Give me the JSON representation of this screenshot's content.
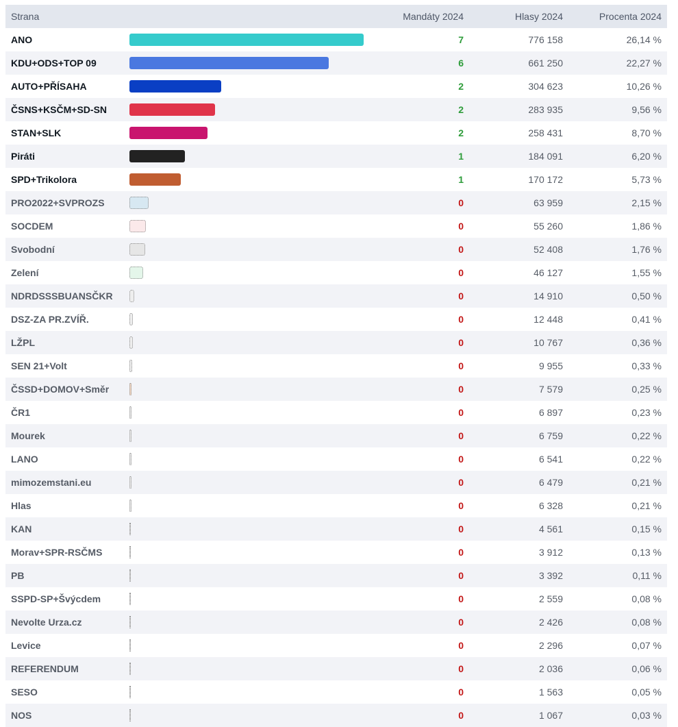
{
  "headers": {
    "party": "Strana",
    "seats": "Mandáty 2024",
    "votes": "Hlasy 2024",
    "percent": "Procenta 2024"
  },
  "chart_data": {
    "type": "bar",
    "series": [
      {
        "name": "Procenta 2024",
        "values_field": "pct"
      }
    ],
    "rows": [
      {
        "party": "ANO",
        "seats": "7",
        "votes": "776 158",
        "percent": "26,14 %",
        "pct": 26.14,
        "color": "#35cbcc",
        "elected": true
      },
      {
        "party": "KDU+ODS+TOP 09",
        "seats": "6",
        "votes": "661 250",
        "percent": "22,27 %",
        "pct": 22.27,
        "color": "#4a78e0",
        "elected": true
      },
      {
        "party": "AUTO+PŘÍSAHA",
        "seats": "2",
        "votes": "304 623",
        "percent": "10,26 %",
        "pct": 10.26,
        "color": "#0a3fc4",
        "elected": true
      },
      {
        "party": "ČSNS+KSČM+SD-SN",
        "seats": "2",
        "votes": "283 935",
        "percent": "9,56 %",
        "pct": 9.56,
        "color": "#e0344a",
        "elected": true
      },
      {
        "party": "STAN+SLK",
        "seats": "2",
        "votes": "258 431",
        "percent": "8,70 %",
        "pct": 8.7,
        "color": "#c9146e",
        "elected": true
      },
      {
        "party": "Piráti",
        "seats": "1",
        "votes": "184 091",
        "percent": "6,20 %",
        "pct": 6.2,
        "color": "#222222",
        "elected": true
      },
      {
        "party": "SPD+Trikolora",
        "seats": "1",
        "votes": "170 172",
        "percent": "5,73 %",
        "pct": 5.73,
        "color": "#c05d31",
        "elected": true
      },
      {
        "party": "PRO2022+SVPROZS",
        "seats": "0",
        "votes": "63 959",
        "percent": "2,15 %",
        "pct": 2.15,
        "color": "#d7e8f2",
        "elected": false
      },
      {
        "party": "SOCDEM",
        "seats": "0",
        "votes": "55 260",
        "percent": "1,86 %",
        "pct": 1.86,
        "color": "#fbe9ea",
        "elected": false
      },
      {
        "party": "Svobodní",
        "seats": "0",
        "votes": "52 408",
        "percent": "1,76 %",
        "pct": 1.76,
        "color": "#e6e6e6",
        "elected": false
      },
      {
        "party": "Zelení",
        "seats": "0",
        "votes": "46 127",
        "percent": "1,55 %",
        "pct": 1.55,
        "color": "#e4f6ea",
        "elected": false
      },
      {
        "party": "NDRDSSSBUANSČKR",
        "seats": "0",
        "votes": "14 910",
        "percent": "0,50 %",
        "pct": 0.5,
        "color": "#eeeeee",
        "elected": false
      },
      {
        "party": "DSZ-ZA PR.ZVÍŘ.",
        "seats": "0",
        "votes": "12 448",
        "percent": "0,41 %",
        "pct": 0.41,
        "color": "#eeeeee",
        "elected": false
      },
      {
        "party": "LŽPL",
        "seats": "0",
        "votes": "10 767",
        "percent": "0,36 %",
        "pct": 0.36,
        "color": "#eeeeee",
        "elected": false
      },
      {
        "party": "SEN 21+Volt",
        "seats": "0",
        "votes": "9 955",
        "percent": "0,33 %",
        "pct": 0.33,
        "color": "#eeeeee",
        "elected": false
      },
      {
        "party": "ČSSD+DOMOV+Směr",
        "seats": "0",
        "votes": "7 579",
        "percent": "0,25 %",
        "pct": 0.25,
        "color": "#f7dcc8",
        "elected": false
      },
      {
        "party": "ČR1",
        "seats": "0",
        "votes": "6 897",
        "percent": "0,23 %",
        "pct": 0.23,
        "color": "#eeeeee",
        "elected": false
      },
      {
        "party": "Mourek",
        "seats": "0",
        "votes": "6 759",
        "percent": "0,22 %",
        "pct": 0.22,
        "color": "#eeeeee",
        "elected": false
      },
      {
        "party": "LANO",
        "seats": "0",
        "votes": "6 541",
        "percent": "0,22 %",
        "pct": 0.22,
        "color": "#eeeeee",
        "elected": false
      },
      {
        "party": "mimozemstani.eu",
        "seats": "0",
        "votes": "6 479",
        "percent": "0,21 %",
        "pct": 0.21,
        "color": "#eeeeee",
        "elected": false
      },
      {
        "party": "Hlas",
        "seats": "0",
        "votes": "6 328",
        "percent": "0,21 %",
        "pct": 0.21,
        "color": "#eeeeee",
        "elected": false
      },
      {
        "party": "KAN",
        "seats": "0",
        "votes": "4 561",
        "percent": "0,15 %",
        "pct": 0.15,
        "color": "#eeeeee",
        "elected": false
      },
      {
        "party": "Morav+SPR-RSČMS",
        "seats": "0",
        "votes": "3 912",
        "percent": "0,13 %",
        "pct": 0.13,
        "color": "#eeeeee",
        "elected": false
      },
      {
        "party": "PB",
        "seats": "0",
        "votes": "3 392",
        "percent": "0,11 %",
        "pct": 0.11,
        "color": "#eeeeee",
        "elected": false
      },
      {
        "party": "SSPD-SP+Švýcdem",
        "seats": "0",
        "votes": "2 559",
        "percent": "0,08 %",
        "pct": 0.08,
        "color": "#eeeeee",
        "elected": false
      },
      {
        "party": "Nevolte Urza.cz",
        "seats": "0",
        "votes": "2 426",
        "percent": "0,08 %",
        "pct": 0.08,
        "color": "#eeeeee",
        "elected": false
      },
      {
        "party": "Levice",
        "seats": "0",
        "votes": "2 296",
        "percent": "0,07 %",
        "pct": 0.07,
        "color": "#eeeeee",
        "elected": false
      },
      {
        "party": "REFERENDUM",
        "seats": "0",
        "votes": "2 036",
        "percent": "0,06 %",
        "pct": 0.06,
        "color": "#eeeeee",
        "elected": false
      },
      {
        "party": "SESO",
        "seats": "0",
        "votes": "1 563",
        "percent": "0,05 %",
        "pct": 0.05,
        "color": "#eeeeee",
        "elected": false
      },
      {
        "party": "NOS",
        "seats": "0",
        "votes": "1 067",
        "percent": "0,03 %",
        "pct": 0.03,
        "color": "#eeeeee",
        "elected": false
      }
    ]
  }
}
